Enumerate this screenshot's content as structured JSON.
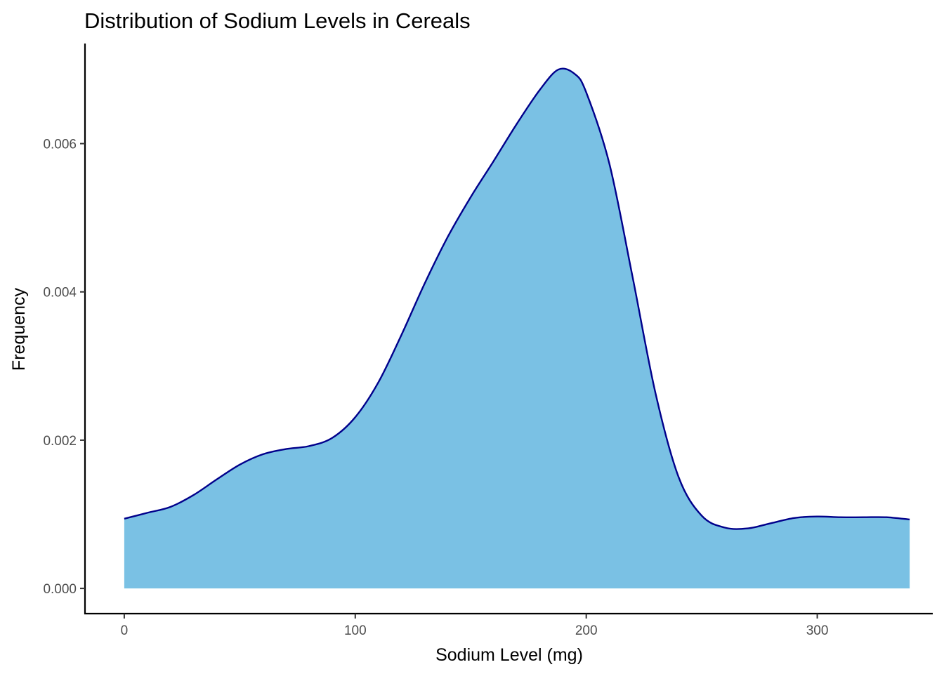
{
  "chart_data": {
    "type": "area",
    "title": "Distribution of Sodium Levels in Cereals",
    "xlabel": "Sodium Level (mg)",
    "ylabel": "Frequency",
    "xlim": [
      -17,
      350
    ],
    "ylim": [
      -0.00034,
      0.00735
    ],
    "x_ticks": [
      0,
      100,
      200,
      300
    ],
    "x_tick_labels": [
      "0",
      "100",
      "200",
      "300"
    ],
    "y_ticks": [
      0,
      0.002,
      0.004,
      0.006
    ],
    "y_tick_labels": [
      "0.000",
      "0.002",
      "0.004",
      "0.006"
    ],
    "grid": false,
    "legend": "none",
    "fill_color": "#7AC1E4",
    "line_color": "#00008B",
    "series": [
      {
        "x": [
          0,
          10,
          20,
          30,
          40,
          50,
          60,
          70,
          80,
          90,
          100,
          110,
          120,
          130,
          140,
          150,
          160,
          170,
          180,
          188,
          195,
          200,
          210,
          220,
          230,
          240,
          250,
          260,
          270,
          280,
          290,
          300,
          310,
          320,
          330,
          340
        ],
        "y": [
          0.00094,
          0.00102,
          0.0011,
          0.00126,
          0.00147,
          0.00167,
          0.00181,
          0.00188,
          0.00192,
          0.00203,
          0.00231,
          0.00278,
          0.00342,
          0.00411,
          0.00474,
          0.00528,
          0.00577,
          0.00627,
          0.00673,
          0.007,
          0.00694,
          0.00669,
          0.00573,
          0.00421,
          0.00263,
          0.0015,
          0.00098,
          0.00082,
          0.00081,
          0.00088,
          0.00095,
          0.00097,
          0.00096,
          0.00096,
          0.00096,
          0.00093
        ]
      }
    ]
  }
}
